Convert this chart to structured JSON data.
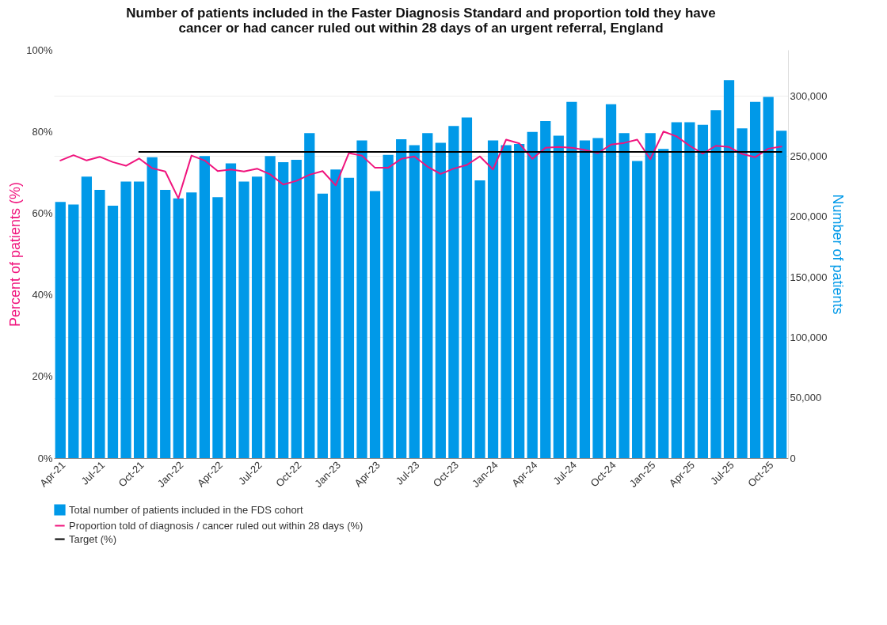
{
  "chart_data": {
    "type": "bar",
    "title": "Number of patients included in the Faster Diagnosis Standard and proportion told they have cancer or had cancer ruled out within 28 days of an urgent referral, England",
    "ylabel": "Percent of patients (%)",
    "y2label": "Number of patients",
    "categories": [
      "Apr-21",
      null,
      null,
      "Jul-21",
      null,
      null,
      "Oct-21",
      null,
      null,
      "Jan-22",
      null,
      null,
      "Apr-22",
      null,
      null,
      "Jul-22",
      null,
      null,
      "Oct-22",
      null,
      null,
      "Jan-23",
      null,
      null,
      "Apr-23",
      null,
      null,
      "Jul-23",
      null,
      null,
      "Oct-23",
      null,
      null,
      "Jan-24",
      null,
      null,
      "Apr-24",
      null,
      null,
      "Jul-24",
      null,
      null,
      "Oct-24",
      null,
      null,
      "Jan-25",
      null,
      null,
      "Apr-25",
      null,
      null,
      "Jul-25",
      null,
      null,
      "Oct-25",
      null
    ],
    "series": [
      {
        "name": "Total number of patients included in the FDS cohort",
        "axis": "y2",
        "color": "#0099e8",
        "values": [
          212000,
          210000,
          233000,
          222000,
          209000,
          229000,
          229000,
          249000,
          222000,
          215000,
          220000,
          250000,
          216000,
          244000,
          229000,
          233000,
          250000,
          245000,
          247000,
          269000,
          219000,
          239000,
          232000,
          263000,
          221000,
          251000,
          264000,
          259000,
          269000,
          261000,
          275000,
          282000,
          230000,
          263000,
          259000,
          260000,
          270000,
          279000,
          267000,
          295000,
          263000,
          265000,
          293000,
          269000,
          246000,
          269000,
          256000,
          278000,
          278000,
          276000,
          288000,
          313000,
          273000,
          295000,
          299000,
          271000
        ]
      },
      {
        "name": "Proportion told of diagnosis / cancer ruled out within 28 days (%)",
        "type": "line",
        "color": "#f0147d",
        "values": [
          72.9,
          74.2,
          72.9,
          73.8,
          72.5,
          71.6,
          73.4,
          71.0,
          70.2,
          63.6,
          74.1,
          72.9,
          70.3,
          70.7,
          70.2,
          70.9,
          69.5,
          67.0,
          67.9,
          69.4,
          70.3,
          66.8,
          74.7,
          74.1,
          71.1,
          71.1,
          73.3,
          73.9,
          71.4,
          69.6,
          70.9,
          71.8,
          73.9,
          70.7,
          78.0,
          77.1,
          73.3,
          76.0,
          76.2,
          76.0,
          75.5,
          74.7,
          76.8,
          77.2,
          78.0,
          73.2,
          80.0,
          78.8,
          76.5,
          74.6,
          76.5,
          76.2,
          74.5,
          73.7,
          75.8,
          76.3
        ]
      },
      {
        "name": "Target (%)",
        "type": "line",
        "color": "#000000",
        "values": [
          null,
          null,
          null,
          null,
          null,
          null,
          75,
          75,
          75,
          75,
          75,
          75,
          75,
          75,
          75,
          75,
          75,
          75,
          75,
          75,
          75,
          75,
          75,
          75,
          75,
          75,
          75,
          75,
          75,
          75,
          75,
          75,
          75,
          75,
          75,
          75,
          75,
          75,
          75,
          75,
          75,
          75,
          75,
          75,
          75,
          75,
          75,
          75,
          75,
          75,
          75,
          75,
          75,
          75,
          75,
          75
        ]
      }
    ],
    "ylim": [
      0,
      100
    ],
    "yticks": [
      {
        "value": 0,
        "label": "0%"
      },
      {
        "value": 20,
        "label": "20%"
      },
      {
        "value": 40,
        "label": "40%"
      },
      {
        "value": 60,
        "label": "60%"
      },
      {
        "value": 80,
        "label": "80%"
      },
      {
        "value": 100,
        "label": "100%"
      }
    ],
    "y2lim": [
      0,
      338000
    ],
    "y2ticks": [
      {
        "value": 0,
        "label": "0"
      },
      {
        "value": 50000,
        "label": "50,000"
      },
      {
        "value": 100000,
        "label": "100,000"
      },
      {
        "value": 150000,
        "label": "150,000"
      },
      {
        "value": 200000,
        "label": "200,000"
      },
      {
        "value": 250000,
        "label": "250,000"
      },
      {
        "value": 300000,
        "label": "300,000"
      }
    ],
    "grid": "y2",
    "legend": "bottom"
  }
}
